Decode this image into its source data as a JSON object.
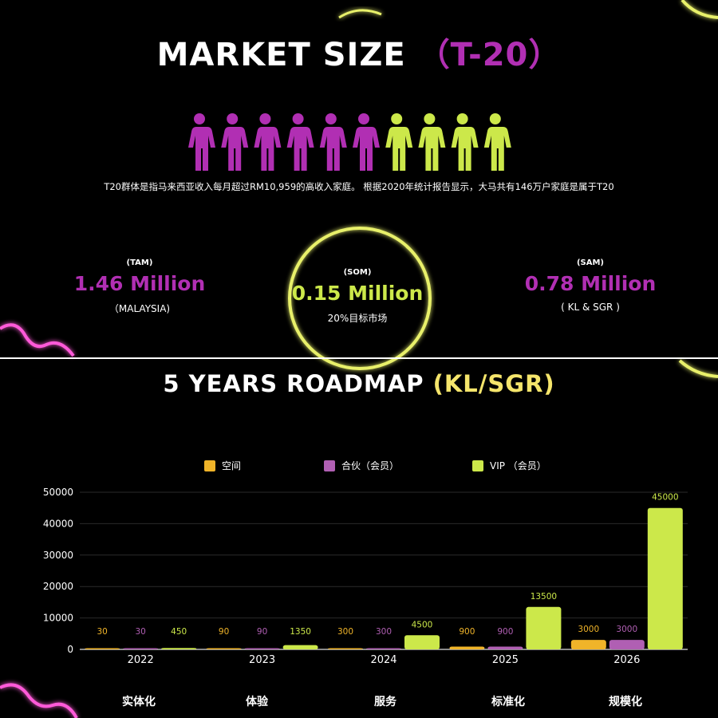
{
  "header": {
    "title_main": "MARKET SIZE",
    "title_accent": "（T-20）"
  },
  "description": "T20群体是指马来西亚收入每月超过RM10,959的高收入家庭。 根据2020年统计报告显示，大马共有146万户家庭是属于T20",
  "people": {
    "magenta_count": 6,
    "lime_count": 4,
    "colors": {
      "magenta": "#b12fb3",
      "lime": "#cce84a"
    }
  },
  "stats": {
    "tam": {
      "label": "(TAM)",
      "value": "1.46 Million",
      "sub": "（MALAYSIA)"
    },
    "som": {
      "label": "(SOM)",
      "value": "0.15 Million",
      "sub": "20%目标市场"
    },
    "sam": {
      "label": "(SAM)",
      "value": "0.78 Million",
      "sub": "( KL & SGR )"
    }
  },
  "roadmap": {
    "title_main": "5 YEARS ROADMAP",
    "title_accent": "(KL/SGR)",
    "stages": [
      "实体化",
      "体验",
      "服务",
      "标准化",
      "规模化"
    ]
  },
  "chart_data": {
    "type": "bar",
    "categories": [
      "2022",
      "2023",
      "2024",
      "2025",
      "2026"
    ],
    "series": [
      {
        "name": "空间",
        "color": "#f0b429",
        "values": [
          30,
          90,
          300,
          900,
          3000
        ]
      },
      {
        "name": "合伙（会员）",
        "color": "#b05fb3",
        "values": [
          30,
          90,
          300,
          900,
          3000
        ]
      },
      {
        "name": "VIP （会员）",
        "color": "#cce84a",
        "values": [
          450,
          1350,
          4500,
          13500,
          45000
        ]
      }
    ],
    "y_ticks": [
      "0",
      "10000",
      "20000",
      "30000",
      "40000",
      "50000"
    ],
    "ylim": [
      0,
      50000
    ],
    "legend": "top",
    "grid": true
  }
}
